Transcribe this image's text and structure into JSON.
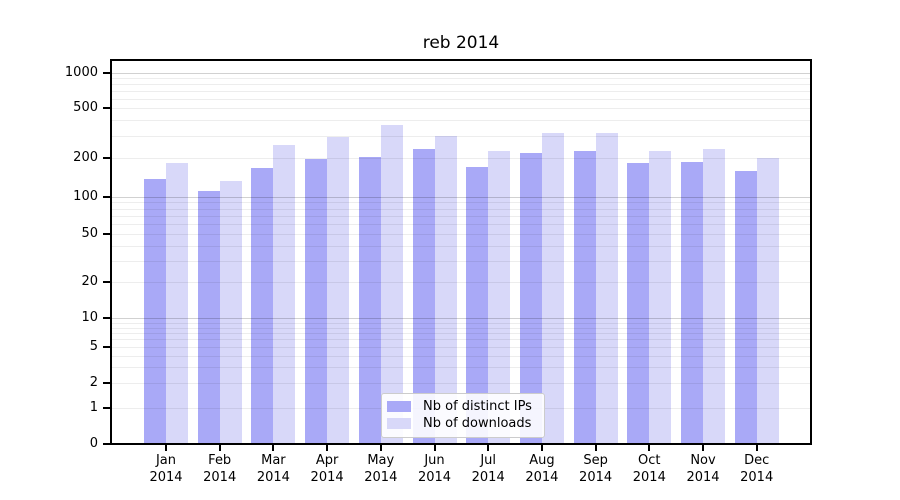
{
  "chart_data": {
    "type": "bar",
    "title": "reb 2014",
    "categories": [
      "Jan",
      "Feb",
      "Mar",
      "Apr",
      "May",
      "Jun",
      "Jul",
      "Aug",
      "Sep",
      "Oct",
      "Nov",
      "Dec"
    ],
    "year_label": "2014",
    "series": [
      {
        "name": "Nb of distinct IPs",
        "color": "#a9a9f7",
        "values": [
          137,
          110,
          168,
          196,
          206,
          236,
          170,
          219,
          230,
          183,
          187,
          160
        ]
      },
      {
        "name": "Nb of downloads",
        "color": "#d8d8f9",
        "values": [
          185,
          133,
          257,
          297,
          370,
          300,
          229,
          320,
          316,
          229,
          238,
          202
        ]
      }
    ],
    "yscale": "log-with-zero (symlog-like)",
    "ytick_values": [
      0,
      1,
      2,
      5,
      10,
      20,
      50,
      100,
      200,
      500,
      1000
    ],
    "ytick_labels": [
      "0",
      "1",
      "2",
      "5",
      "10",
      "20",
      "50",
      "100",
      "200",
      "500",
      "1000"
    ],
    "ylim": [
      0,
      1250
    ],
    "xlabel": "",
    "ylabel": "",
    "grid": "horizontal log gridlines; decades darker, minors lighter, drawn over bars",
    "legend_position": "inside plot, bottom center",
    "colors": {
      "bar_dark": "#a9a9f7",
      "bar_light": "#d8d8f9",
      "grid_major": "#cccccc",
      "grid_minor": "#ededed",
      "axis": "#000000",
      "legend_border": "#cccccc",
      "background": "#ffffff"
    }
  }
}
